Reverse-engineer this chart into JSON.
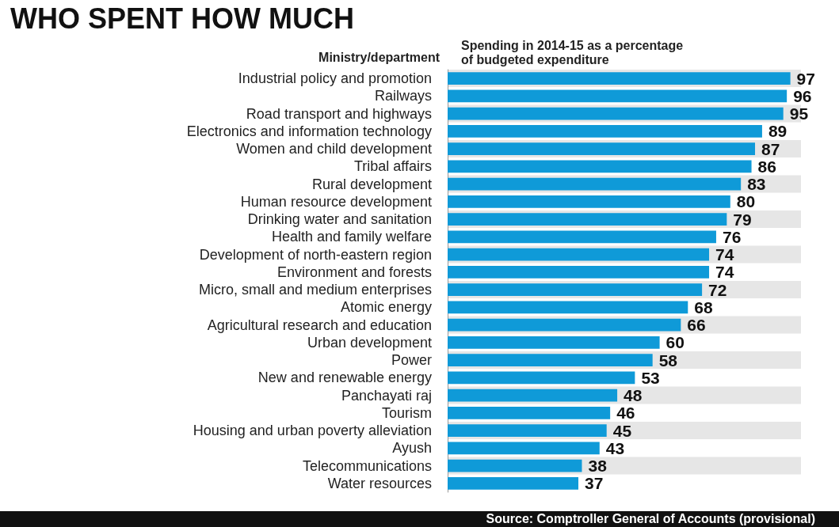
{
  "chart_data": {
    "type": "bar",
    "orientation": "horizontal",
    "title": "WHO SPENT HOW MUCH",
    "ylabel": "Ministry/department",
    "xlabel": "Spending in 2014-15 as a percentage\nof budgeted expenditure",
    "categories": [
      "Industrial policy and promotion",
      "Railways",
      "Road transport and highways",
      "Electronics and information technology",
      "Women and child development",
      "Tribal affairs",
      "Rural development",
      "Human resource development",
      "Drinking water and sanitation",
      "Health and family welfare",
      "Development of north-eastern region",
      "Environment and forests",
      "Micro, small and medium enterprises",
      "Atomic energy",
      "Agricultural research and education",
      "Urban development",
      "Power",
      "New and renewable energy",
      "Panchayati raj",
      "Tourism",
      "Housing and urban poverty alleviation",
      "Ayush",
      "Telecommunications",
      "Water resources"
    ],
    "values": [
      97,
      96,
      95,
      89,
      87,
      86,
      83,
      80,
      79,
      76,
      74,
      74,
      72,
      68,
      66,
      60,
      58,
      53,
      48,
      46,
      45,
      43,
      38,
      37
    ],
    "color": "#0f9ad8",
    "data_labels": true,
    "tick_labels": "y",
    "annotations": [
      "Source: Comptroller General of Accounts (provisional)"
    ]
  }
}
